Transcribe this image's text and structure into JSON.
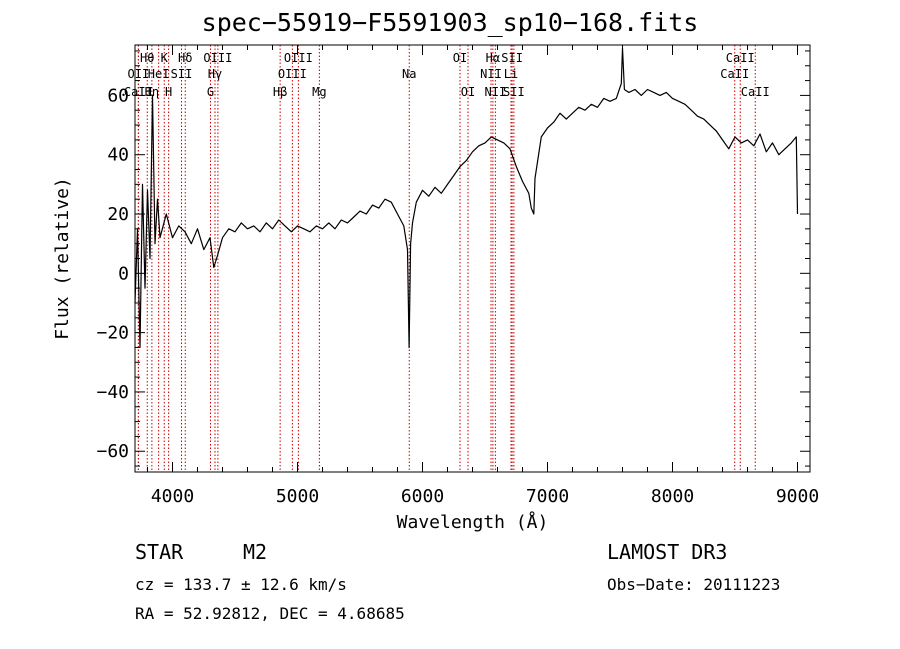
{
  "chart_data": {
    "type": "line",
    "title": "spec−55919−F5591903_sp10−168.fits",
    "xlabel": "Wavelength (Å)",
    "ylabel": "Flux (relative)",
    "xlim": [
      3700,
      9100
    ],
    "ylim": [
      -67,
      77
    ],
    "x_ticks": [
      4000,
      5000,
      6000,
      7000,
      8000,
      9000
    ],
    "y_ticks": [
      -60,
      -40,
      -20,
      0,
      20,
      40,
      60
    ],
    "y_tick_labels": [
      "−60",
      "−40",
      "−20",
      "0",
      "20",
      "40",
      "60"
    ],
    "series": [
      {
        "name": "flux",
        "x": [
          3700,
          3720,
          3740,
          3760,
          3780,
          3800,
          3820,
          3840,
          3860,
          3880,
          3900,
          3950,
          4000,
          4050,
          4100,
          4150,
          4200,
          4250,
          4300,
          4330,
          4360,
          4400,
          4450,
          4500,
          4550,
          4600,
          4650,
          4700,
          4750,
          4800,
          4850,
          4900,
          4950,
          5000,
          5050,
          5100,
          5150,
          5200,
          5250,
          5300,
          5350,
          5400,
          5450,
          5500,
          5550,
          5600,
          5650,
          5700,
          5750,
          5800,
          5850,
          5880,
          5893,
          5905,
          5920,
          5950,
          6000,
          6050,
          6100,
          6150,
          6200,
          6250,
          6300,
          6350,
          6400,
          6450,
          6500,
          6550,
          6600,
          6650,
          6700,
          6750,
          6800,
          6850,
          6870,
          6890,
          6900,
          6950,
          7000,
          7050,
          7100,
          7150,
          7200,
          7250,
          7300,
          7350,
          7400,
          7450,
          7500,
          7550,
          7590,
          7600,
          7615,
          7650,
          7700,
          7750,
          7800,
          7850,
          7900,
          7950,
          8000,
          8050,
          8100,
          8150,
          8200,
          8250,
          8300,
          8350,
          8400,
          8450,
          8500,
          8550,
          8600,
          8650,
          8700,
          8750,
          8800,
          8850,
          8900,
          8950,
          8990,
          9000
        ],
        "y": [
          -10,
          15,
          -25,
          30,
          -5,
          28,
          5,
          60,
          10,
          25,
          12,
          20,
          12,
          16,
          14,
          10,
          15,
          8,
          12,
          2,
          6,
          12,
          15,
          14,
          17,
          15,
          16,
          14,
          17,
          15,
          18,
          16,
          14,
          16,
          15,
          14,
          16,
          15,
          17,
          15,
          18,
          17,
          19,
          21,
          20,
          23,
          22,
          25,
          24,
          20,
          16,
          8,
          -25,
          10,
          17,
          24,
          28,
          26,
          29,
          27,
          30,
          33,
          36,
          38,
          41,
          43,
          44,
          46,
          45,
          44,
          42,
          36,
          31,
          27,
          22,
          20,
          32,
          46,
          49,
          51,
          54,
          52,
          54,
          56,
          55,
          57,
          56,
          59,
          58,
          59,
          64,
          76,
          62,
          61,
          62,
          60,
          62,
          61,
          60,
          61,
          59,
          58,
          57,
          55,
          53,
          52,
          50,
          48,
          45,
          42,
          46,
          44,
          45,
          43,
          47,
          41,
          44,
          40,
          42,
          44,
          46,
          20
        ]
      }
    ],
    "lines": [
      {
        "name": "Hθ",
        "x": 3798,
        "label_row": 1
      },
      {
        "name": "OII",
        "x": 3727,
        "label_row": 2
      },
      {
        "name": "CaII",
        "x": 3727,
        "label_row": 3
      },
      {
        "name": "K",
        "x": 3934,
        "label_row": 1
      },
      {
        "name": "HeI",
        "x": 3889,
        "label_row": 2
      },
      {
        "name": "Hη",
        "x": 3835,
        "label_row": 3
      },
      {
        "name": "H",
        "x": 3969,
        "label_row": 3
      },
      {
        "name": "Hδ",
        "x": 4102,
        "label_row": 1
      },
      {
        "name": "SII",
        "x": 4072,
        "label_row": 2
      },
      {
        "name": "OIII",
        "x": 4363,
        "label_row": 1
      },
      {
        "name": "Hγ",
        "x": 4340,
        "label_row": 2
      },
      {
        "name": "G",
        "x": 4304,
        "label_row": 3
      },
      {
        "name": "OIII",
        "x": 5007,
        "label_row": 1
      },
      {
        "name": "OIII",
        "x": 4959,
        "label_row": 2
      },
      {
        "name": "Hβ",
        "x": 4861,
        "label_row": 3
      },
      {
        "name": "Mg",
        "x": 5175,
        "label_row": 3
      },
      {
        "name": "Na",
        "x": 5894,
        "label_row": 2
      },
      {
        "name": "OI",
        "x": 6300,
        "label_row": 1
      },
      {
        "name": "OI",
        "x": 6364,
        "label_row": 3
      },
      {
        "name": "Hα",
        "x": 6563,
        "label_row": 1
      },
      {
        "name": "SII",
        "x": 6717,
        "label_row": 1
      },
      {
        "name": "NII",
        "x": 6548,
        "label_row": 2
      },
      {
        "name": "Li",
        "x": 6708,
        "label_row": 2
      },
      {
        "name": "NII",
        "x": 6583,
        "label_row": 3
      },
      {
        "name": "SII",
        "x": 6731,
        "label_row": 3
      },
      {
        "name": "CaII",
        "x": 8542,
        "label_row": 1
      },
      {
        "name": "CaII",
        "x": 8498,
        "label_row": 2
      },
      {
        "name": "CaII",
        "x": 8662,
        "label_row": 3
      }
    ]
  },
  "info": {
    "class": "STAR",
    "subclass": "M2",
    "survey": "LAMOST DR3",
    "cz": "cz = 133.7 ± 12.6 km/s",
    "obs_date": "Obs−Date: 20111223",
    "coords": "RA =  52.92812, DEC =   4.68685"
  },
  "colors": {
    "line_marker": "#cc0000",
    "spectrum": "#000000"
  }
}
